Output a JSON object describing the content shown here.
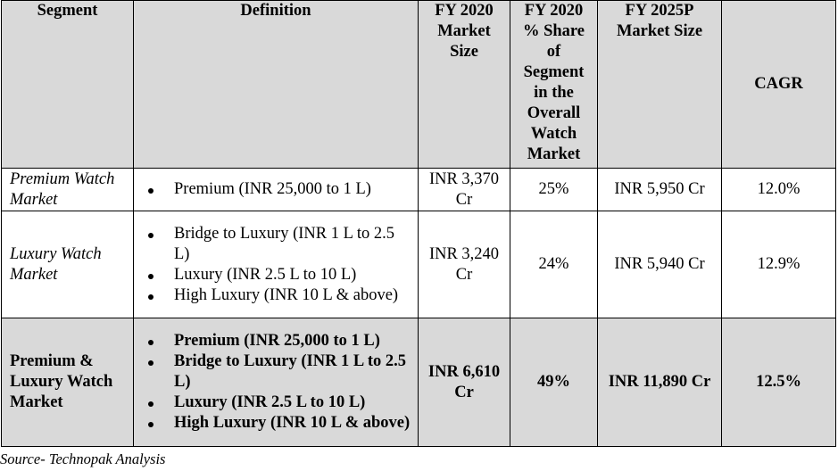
{
  "headers": [
    "Segment",
    "Definition",
    "FY 2020 Market Size",
    "FY 2020 % Share of Segment in the Overall Watch Market",
    "FY 2025P Market Size",
    "CAGR"
  ],
  "rows": [
    {
      "segment": "Premium Watch Market",
      "definition": [
        "Premium (INR 25,000 to 1 L)"
      ],
      "fy2020": "INR 3,370 Cr",
      "share": "25%",
      "fy2025": "INR 5,950 Cr",
      "cagr": "12.0%"
    },
    {
      "segment": "Luxury Watch Market",
      "definition": [
        "Bridge to Luxury (INR 1 L to 2.5 L)",
        "Luxury (INR 2.5 L to 10 L)",
        "High Luxury (INR 10 L & above)"
      ],
      "fy2020": "INR 3,240 Cr",
      "share": "24%",
      "fy2025": "INR 5,940 Cr",
      "cagr": "12.9%"
    },
    {
      "segment": "Premium & Luxury Watch Market",
      "definition": [
        "Premium (INR 25,000 to 1 L)",
        "Bridge to Luxury (INR 1 L to 2.5 L)",
        "Luxury (INR 2.5 L to 10 L)",
        "High Luxury (INR 10 L & above)"
      ],
      "fy2020": "INR 6,610 Cr",
      "share": "49%",
      "fy2025": "INR 11,890 Cr",
      "cagr": "12.5%"
    }
  ],
  "source": "Source- Technopak Analysis",
  "colors": {
    "header_bg": "#d9d9d9",
    "total_row_bg": "#d9d9d9"
  }
}
